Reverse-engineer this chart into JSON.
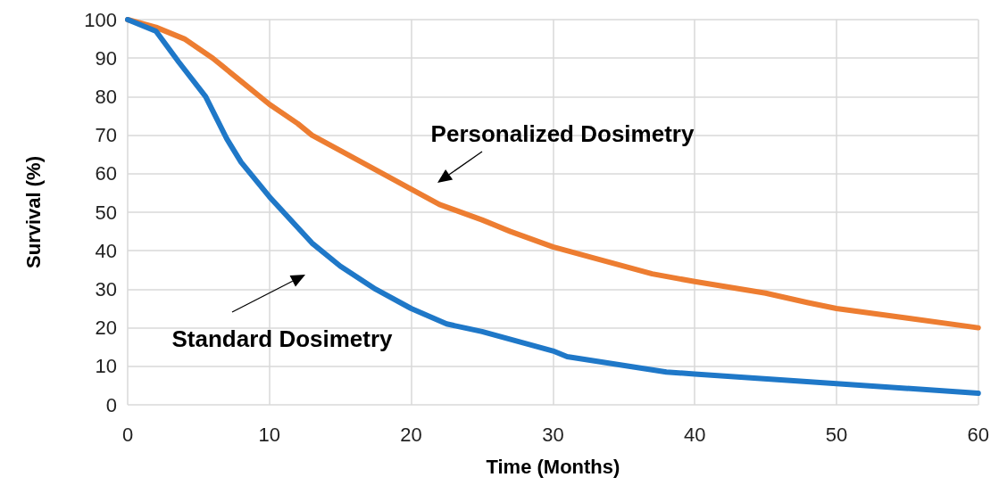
{
  "chart_data": {
    "type": "line",
    "xlabel": "Time (Months)",
    "ylabel": "Survival (%)",
    "xlim": [
      0,
      60
    ],
    "xticks": [
      0,
      10,
      20,
      30,
      40,
      50,
      60
    ],
    "ylim": [
      0,
      100
    ],
    "yticks": [
      0,
      10,
      20,
      30,
      40,
      50,
      60,
      70,
      80,
      90,
      100
    ],
    "grid": true,
    "marker": "none",
    "line_style": "solid",
    "series": [
      {
        "color": "#ed7d31",
        "x": [
          0,
          2,
          4,
          6,
          8,
          10,
          12,
          13,
          15,
          20,
          22,
          25,
          27,
          30,
          33,
          37,
          40,
          45,
          48,
          50,
          55,
          60
        ],
        "values": [
          100,
          98,
          95,
          90,
          84,
          78,
          73,
          70,
          66,
          56,
          52,
          48,
          45,
          41,
          38,
          34,
          32,
          29,
          26.5,
          25,
          22.5,
          20
        ]
      },
      {
        "color": "#1f78c8",
        "x": [
          0,
          2,
          3.6,
          5.5,
          7,
          8,
          10,
          12,
          13,
          15,
          17.5,
          20,
          22.5,
          25,
          30,
          31,
          38,
          40,
          50,
          60
        ],
        "values": [
          100,
          97,
          89,
          80,
          69,
          63,
          54,
          46,
          42,
          36,
          30,
          25,
          21,
          19,
          14,
          12.5,
          8.5,
          8,
          5.5,
          3
        ]
      }
    ],
    "annotations": [
      "Personalized Dosimetry",
      "Standard Dosimetry"
    ]
  }
}
